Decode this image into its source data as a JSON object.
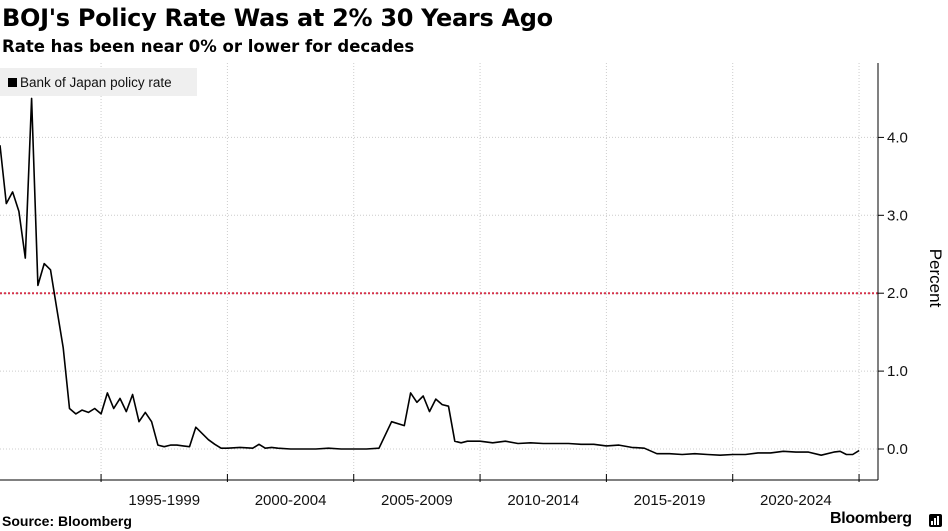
{
  "header": {
    "title": "BOJ's Policy Rate Was at 2% 30 Years Ago",
    "subtitle": "Rate has been near 0% or lower for decades"
  },
  "footer": {
    "source": "Source: Bloomberg",
    "brand": "Bloomberg"
  },
  "colors": {
    "line": "#000000",
    "reference_line": "#d6344b",
    "grid": "#cccccc",
    "legend_bg": "#efefef"
  },
  "chart_data": {
    "type": "line",
    "title": "BOJ's Policy Rate Was at 2% 30 Years Ago",
    "subtitle": "Rate has been near 0% or lower for decades",
    "xlabel": "",
    "ylabel": "Percent",
    "ylim": [
      -0.05,
      4.9
    ],
    "xlim": [
      1991.0,
      2025.75
    ],
    "yticks": [
      0.0,
      1.0,
      2.0,
      3.0,
      4.0
    ],
    "ytick_labels": [
      "0.0",
      "1.0",
      "2.0",
      "3.0",
      "4.0"
    ],
    "x_tick_labels": [
      "1995-1999",
      "2000-2004",
      "2005-2009",
      "2010-2014",
      "2015-2019",
      "2020-2024"
    ],
    "x_tick_centers": [
      1997.5,
      2002.5,
      2007.5,
      2012.5,
      2017.5,
      2022.5
    ],
    "x_tick_boundaries": [
      1995,
      2000,
      2005,
      2010,
      2015,
      2020,
      2025
    ],
    "grid": true,
    "legend_position": "top-left",
    "reference_line": {
      "y": 2.0,
      "style": "dotted"
    },
    "series": [
      {
        "name": "Bank of Japan policy rate",
        "x": [
          1991.0,
          1991.25,
          1991.5,
          1991.75,
          1992.0,
          1992.25,
          1992.5,
          1992.75,
          1993.0,
          1993.25,
          1993.5,
          1993.75,
          1994.0,
          1994.25,
          1994.5,
          1994.75,
          1995.0,
          1995.25,
          1995.5,
          1995.75,
          1996.0,
          1996.25,
          1996.5,
          1996.75,
          1997.0,
          1997.25,
          1997.5,
          1997.75,
          1998.0,
          1998.25,
          1998.5,
          1998.75,
          1999.0,
          1999.25,
          1999.5,
          1999.75,
          2000.0,
          2000.5,
          2001.0,
          2001.25,
          2001.5,
          2001.75,
          2002.0,
          2002.5,
          2003.0,
          2003.5,
          2004.0,
          2004.5,
          2005.0,
          2005.5,
          2006.0,
          2006.5,
          2007.0,
          2007.25,
          2007.5,
          2007.75,
          2008.0,
          2008.25,
          2008.5,
          2008.75,
          2009.0,
          2009.25,
          2009.5,
          2009.75,
          2010.0,
          2010.5,
          2011.0,
          2011.5,
          2012.0,
          2012.5,
          2013.0,
          2013.5,
          2014.0,
          2014.5,
          2015.0,
          2015.5,
          2016.0,
          2016.5,
          2017.0,
          2017.5,
          2018.0,
          2018.5,
          2019.0,
          2019.5,
          2020.0,
          2020.5,
          2021.0,
          2021.5,
          2022.0,
          2022.5,
          2023.0,
          2023.5,
          2024.0,
          2024.25,
          2024.5,
          2024.75,
          2025.0
        ],
        "values": [
          3.9,
          3.15,
          3.3,
          3.05,
          2.45,
          4.5,
          2.1,
          2.38,
          2.3,
          1.8,
          1.3,
          0.52,
          0.45,
          0.5,
          0.47,
          0.52,
          0.45,
          0.72,
          0.52,
          0.65,
          0.48,
          0.7,
          0.35,
          0.47,
          0.35,
          0.05,
          0.03,
          0.05,
          0.05,
          0.04,
          0.03,
          0.28,
          0.2,
          0.12,
          0.06,
          0.01,
          0.01,
          0.02,
          0.01,
          0.06,
          0.01,
          0.02,
          0.01,
          0.0,
          0.0,
          0.0,
          0.01,
          0.0,
          0.0,
          0.0,
          0.01,
          0.35,
          0.3,
          0.72,
          0.6,
          0.68,
          0.48,
          0.64,
          0.57,
          0.55,
          0.1,
          0.08,
          0.1,
          0.1,
          0.1,
          0.08,
          0.1,
          0.07,
          0.08,
          0.07,
          0.07,
          0.07,
          0.06,
          0.06,
          0.04,
          0.05,
          0.02,
          0.01,
          -0.06,
          -0.06,
          -0.07,
          -0.06,
          -0.07,
          -0.08,
          -0.07,
          -0.07,
          -0.05,
          -0.05,
          -0.03,
          -0.04,
          -0.04,
          -0.08,
          -0.04,
          -0.03,
          -0.07,
          -0.07,
          -0.02
        ]
      }
    ]
  }
}
